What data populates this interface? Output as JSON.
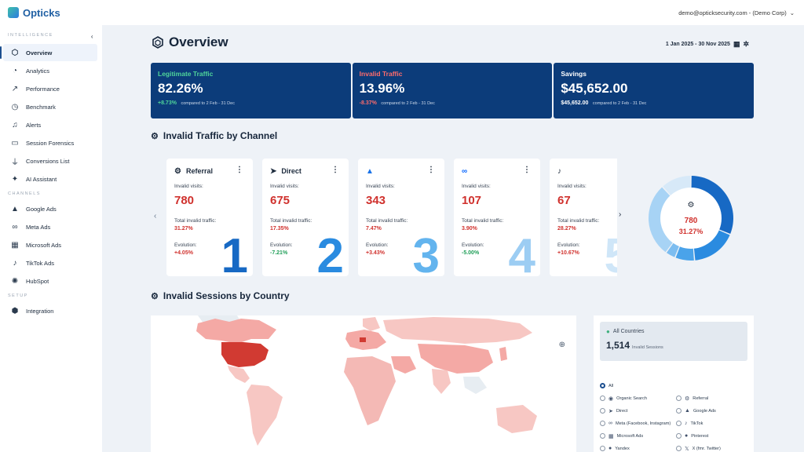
{
  "app": {
    "name": "Opticks",
    "account": "demo@opticksecurity.com - (Demo Corp)"
  },
  "sidebar": {
    "sections": [
      {
        "title": "INTELLIGENCE",
        "items": [
          {
            "label": "Overview",
            "icon": "overview-icon"
          },
          {
            "label": "Analytics",
            "icon": "analytics-icon"
          },
          {
            "label": "Performance",
            "icon": "performance-icon"
          },
          {
            "label": "Benchmark",
            "icon": "benchmark-icon"
          },
          {
            "label": "Alerts",
            "icon": "bell-icon"
          },
          {
            "label": "Session Forensics",
            "icon": "monitor-icon"
          },
          {
            "label": "Conversions List",
            "icon": "funnel-icon"
          },
          {
            "label": "AI Assistant",
            "icon": "sparkle-icon"
          }
        ]
      },
      {
        "title": "CHANNELS",
        "items": [
          {
            "label": "Google Ads",
            "icon": "google-ads-icon"
          },
          {
            "label": "Meta Ads",
            "icon": "meta-icon"
          },
          {
            "label": "Microsoft Ads",
            "icon": "microsoft-icon"
          },
          {
            "label": "TikTok Ads",
            "icon": "tiktok-icon"
          },
          {
            "label": "HubSpot",
            "icon": "hubspot-icon"
          }
        ]
      },
      {
        "title": "SETUP",
        "items": [
          {
            "label": "Integration",
            "icon": "integration-icon"
          }
        ]
      }
    ]
  },
  "overview": {
    "title": "Overview",
    "date_range": "1 Jan 2025 - 30 Nov 2025"
  },
  "kpis": [
    {
      "label": "Legitimate Traffic",
      "value": "82.26%",
      "delta": "+8.73%",
      "compare": "compared to 2 Feb - 31 Dec",
      "label_color": "#4fd49a",
      "delta_color": "#4fd49a"
    },
    {
      "label": "Invalid Traffic",
      "value": "13.96%",
      "delta": "-8.37%",
      "compare": "compared to 2 Feb - 31 Dec",
      "label_color": "#ff6b6b",
      "delta_color": "#ff6b6b"
    },
    {
      "label": "Savings",
      "value": "$45,652.00",
      "delta": "$45,652.00",
      "compare": "compared to 2 Feb - 31 Dec",
      "label_color": "#ffffff",
      "delta_color": "#ffffff"
    }
  ],
  "channel_section": {
    "title": "Invalid Traffic by Channel"
  },
  "channel_cards": [
    {
      "name": "Referral",
      "icon": "referral-icon",
      "visits_label": "Invalid visits:",
      "visits": "780",
      "total_label": "Total invalid traffic:",
      "total": "31.27%",
      "evo_label": "Evolution:",
      "evo": "+4.05%",
      "evo_color": "red",
      "rank": "1",
      "rank_color": "#1769c4"
    },
    {
      "name": "Direct",
      "icon": "direct-icon",
      "visits_label": "Invalid visits:",
      "visits": "675",
      "total_label": "Total invalid traffic:",
      "total": "17.35%",
      "evo_label": "Evolution:",
      "evo": "-7.21%",
      "evo_color": "green",
      "rank": "2",
      "rank_color": "#2a8be0"
    },
    {
      "name": "",
      "icon": "google-ads-icon",
      "visits_label": "Invalid visits:",
      "visits": "343",
      "total_label": "Total invalid traffic:",
      "total": "7.47%",
      "evo_label": "Evolution:",
      "evo": "+3.43%",
      "evo_color": "red",
      "rank": "3",
      "rank_color": "#63b4ee"
    },
    {
      "name": "",
      "icon": "meta-icon",
      "visits_label": "Invalid visits:",
      "visits": "107",
      "total_label": "Total invalid traffic:",
      "total": "3.90%",
      "evo_label": "Evolution:",
      "evo": "-5.00%",
      "evo_color": "green",
      "rank": "4",
      "rank_color": "#9ccdf3"
    },
    {
      "name": "",
      "icon": "tiktok-icon",
      "visits_label": "Invalid visits:",
      "visits": "67",
      "total_label": "Total invalid traffic:",
      "total": "28.27%",
      "evo_label": "Evolution:",
      "evo": "+10.67%",
      "evo_color": "red",
      "rank": "5",
      "rank_color": "#cfe6f8"
    }
  ],
  "donut": {
    "value": "780",
    "pct": "31.27%",
    "segments": [
      31.27,
      17.35,
      7.47,
      3.9,
      28.27,
      11.74
    ],
    "colors": [
      "#1769c4",
      "#2a8be0",
      "#4aa3ea",
      "#7cbdf0",
      "#a7d3f5",
      "#d7e9f8"
    ]
  },
  "country_section": {
    "title": "Invalid Sessions by Country"
  },
  "filter": {
    "all_label": "All Countries",
    "total": "1,514",
    "total_label": "Invalid Sessions",
    "options": [
      {
        "label": "All",
        "icon": "",
        "selected": true
      },
      {
        "label": "",
        "icon": "",
        "selected": false
      },
      {
        "label": "Organic Search",
        "icon": "search-icon",
        "selected": false
      },
      {
        "label": "Referral",
        "icon": "referral-icon",
        "selected": false
      },
      {
        "label": "Direct",
        "icon": "direct-icon",
        "selected": false
      },
      {
        "label": "Google Ads",
        "icon": "google-ads-icon",
        "selected": false
      },
      {
        "label": "Meta (Facebook, Instagram)",
        "icon": "meta-icon",
        "selected": false
      },
      {
        "label": "TikTok",
        "icon": "tiktok-icon",
        "selected": false
      },
      {
        "label": "Microsoft Ads",
        "icon": "microsoft-icon",
        "selected": false
      },
      {
        "label": "Pinterest",
        "icon": "pinterest-icon",
        "selected": false
      },
      {
        "label": "Yandex",
        "icon": "yandex-icon",
        "selected": false
      },
      {
        "label": "X (fmr. Twitter)",
        "icon": "x-icon",
        "selected": false
      }
    ]
  }
}
